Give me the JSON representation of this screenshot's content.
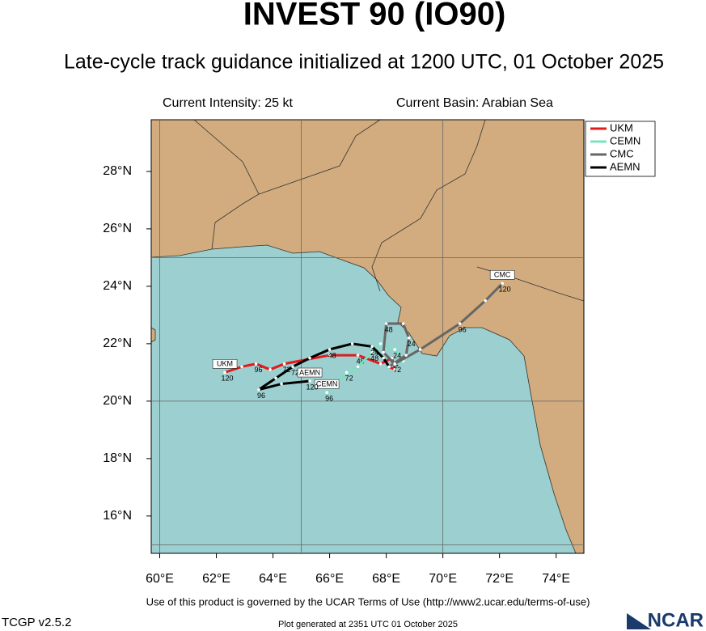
{
  "chart_data": {
    "type": "line",
    "title": "INVEST 90 (IO90)",
    "subtitle": "Late-cycle track guidance initialized at 1200 UTC, 01 October 2025",
    "intensity": "Current Intensity: 25 kt",
    "basin": "Current Basin: Arabian Sea",
    "xlim": [
      59.7,
      74.98
    ],
    "ylim": [
      14.7,
      29.8
    ],
    "xticks": [
      {
        "value": 60,
        "label": "60°E"
      },
      {
        "value": 62,
        "label": "62°E"
      },
      {
        "value": 64,
        "label": "64°E"
      },
      {
        "value": 66,
        "label": "66°E"
      },
      {
        "value": 68,
        "label": "68°E"
      },
      {
        "value": 70,
        "label": "70°E"
      },
      {
        "value": 72,
        "label": "72°E"
      },
      {
        "value": 74,
        "label": "74°E"
      }
    ],
    "yticks": [
      {
        "value": 16,
        "label": "16°N"
      },
      {
        "value": 18,
        "label": "18°N"
      },
      {
        "value": 20,
        "label": "20°N"
      },
      {
        "value": 22,
        "label": "22°N"
      },
      {
        "value": 24,
        "label": "24°N"
      },
      {
        "value": 26,
        "label": "26°N"
      },
      {
        "value": 28,
        "label": "28°N"
      }
    ],
    "grid_lon": [
      60,
      65,
      70
    ],
    "grid_lat": [
      15,
      20,
      25
    ],
    "legend": "upper right",
    "series": [
      {
        "name": "UKM",
        "color": "#e31a1c",
        "x": [
          68.1,
          68.3,
          68.2,
          67.8,
          67.0,
          66.0,
          64.4,
          63.9,
          63.4,
          62.9,
          62.3
        ],
        "y": [
          21.2,
          21.1,
          21.5,
          21.3,
          21.6,
          21.6,
          21.3,
          21.1,
          21.3,
          21.2,
          21.0
        ],
        "point_labels": [
          null,
          null,
          24,
          null,
          48,
          null,
          72,
          null,
          96,
          null,
          120
        ]
      },
      {
        "name": "CEMN",
        "color": "#7fe0c0",
        "x": [
          68.1,
          68.6,
          68.3,
          67.8,
          67.5,
          67.0,
          66.6,
          66.3,
          65.9
        ],
        "y": [
          21.2,
          21.4,
          21.8,
          22.0,
          21.7,
          21.2,
          21.0,
          20.7,
          20.3
        ],
        "point_labels": [
          null,
          null,
          24,
          null,
          48,
          null,
          72,
          null,
          96
        ]
      },
      {
        "name": "CMC",
        "color": "#666666",
        "x": [
          68.1,
          68.7,
          68.8,
          68.6,
          68.0,
          67.9,
          68.3,
          69.2,
          70.6,
          71.5,
          72.1
        ],
        "y": [
          21.2,
          21.6,
          22.2,
          22.7,
          22.7,
          21.7,
          21.3,
          21.8,
          22.7,
          23.5,
          24.1
        ],
        "point_labels": [
          null,
          null,
          24,
          null,
          48,
          null,
          72,
          null,
          96,
          null,
          120
        ]
      },
      {
        "name": "AEMN",
        "color": "#000000",
        "x": [
          68.1,
          67.9,
          67.5,
          66.8,
          66.0,
          65.3,
          64.7,
          64.1,
          63.5,
          64.3,
          65.3
        ],
        "y": [
          21.2,
          21.5,
          21.9,
          22.0,
          21.8,
          21.5,
          21.2,
          20.8,
          20.4,
          20.6,
          20.7
        ],
        "point_labels": [
          null,
          null,
          24,
          null,
          48,
          null,
          72,
          null,
          96,
          null,
          120
        ]
      }
    ],
    "footer": {
      "terms": "Use of this product is governed by the UCAR Terms of Use (http://www2.ucar.edu/terms-of-use)",
      "version": "TCGP v2.5.2",
      "generated": "Plot generated at 2351 UTC   01 October 2025",
      "logo": "NCAR"
    }
  }
}
